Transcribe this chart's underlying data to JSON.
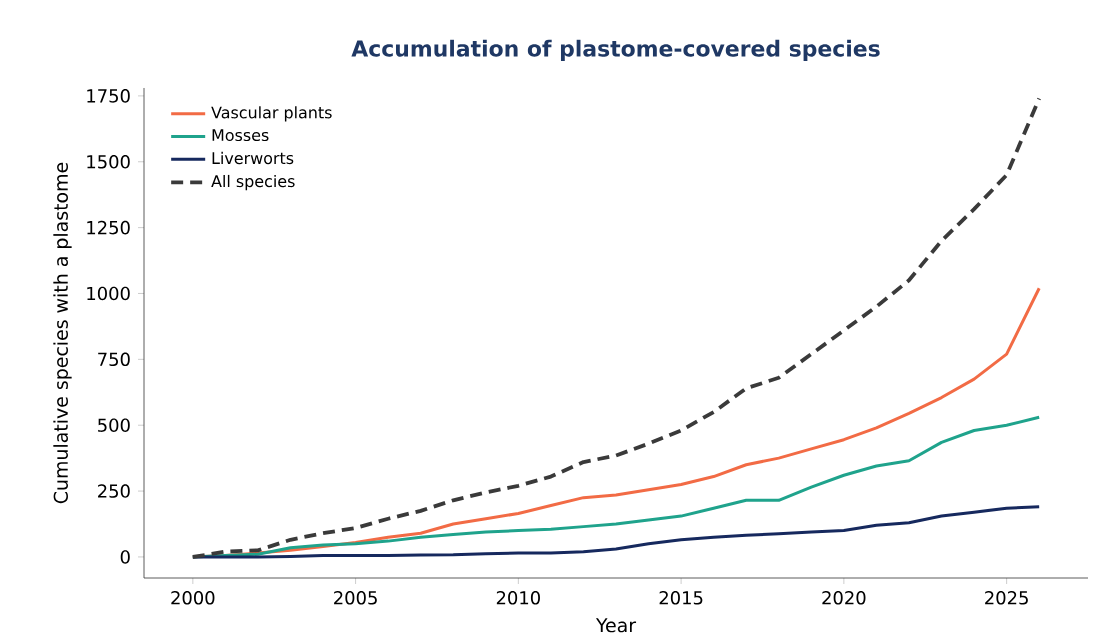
{
  "chart_data": {
    "type": "line",
    "title": "Accumulation of plastome-covered species",
    "xlabel": "Year",
    "ylabel": "Cumulative species with a plastome",
    "x": [
      2000,
      2001,
      2002,
      2003,
      2004,
      2005,
      2006,
      2007,
      2008,
      2009,
      2010,
      2011,
      2012,
      2013,
      2014,
      2015,
      2016,
      2017,
      2018,
      2019,
      2020,
      2021,
      2022,
      2023,
      2024,
      2025,
      2026
    ],
    "series": [
      {
        "name": "Vascular plants",
        "color": "#f26b45",
        "values": [
          0,
          5,
          15,
          25,
          40,
          55,
          75,
          90,
          125,
          145,
          165,
          195,
          225,
          235,
          255,
          275,
          305,
          350,
          375,
          410,
          445,
          490,
          545,
          605,
          675,
          770,
          1020
        ]
      },
      {
        "name": "Mosses",
        "color": "#1fa38c",
        "values": [
          0,
          5,
          10,
          35,
          45,
          50,
          60,
          75,
          85,
          95,
          100,
          105,
          115,
          125,
          140,
          155,
          185,
          215,
          215,
          265,
          310,
          345,
          365,
          435,
          480,
          500,
          530
        ]
      },
      {
        "name": "Liverworts",
        "color": "#16295e",
        "values": [
          0,
          0,
          0,
          2,
          5,
          5,
          5,
          7,
          8,
          12,
          15,
          15,
          20,
          30,
          50,
          65,
          75,
          82,
          88,
          95,
          100,
          120,
          130,
          155,
          170,
          185,
          190
        ]
      },
      {
        "name": "All species",
        "color": "#3a3a3a",
        "line_style": "dashed",
        "values": [
          0,
          20,
          25,
          65,
          90,
          110,
          145,
          175,
          215,
          245,
          270,
          305,
          360,
          385,
          430,
          480,
          550,
          640,
          680,
          770,
          860,
          950,
          1050,
          1200,
          1320,
          1450,
          1740
        ]
      }
    ],
    "xlim": [
      1998.5,
      2027.5
    ],
    "xticks": [
      2000,
      2005,
      2010,
      2015,
      2020,
      2025
    ],
    "ylim": [
      -80,
      1780
    ],
    "yticks": [
      0,
      250,
      500,
      750,
      1000,
      1250,
      1500,
      1750
    ],
    "legend": "top left",
    "grid": false,
    "marker": "none",
    "line_style": "solid"
  }
}
